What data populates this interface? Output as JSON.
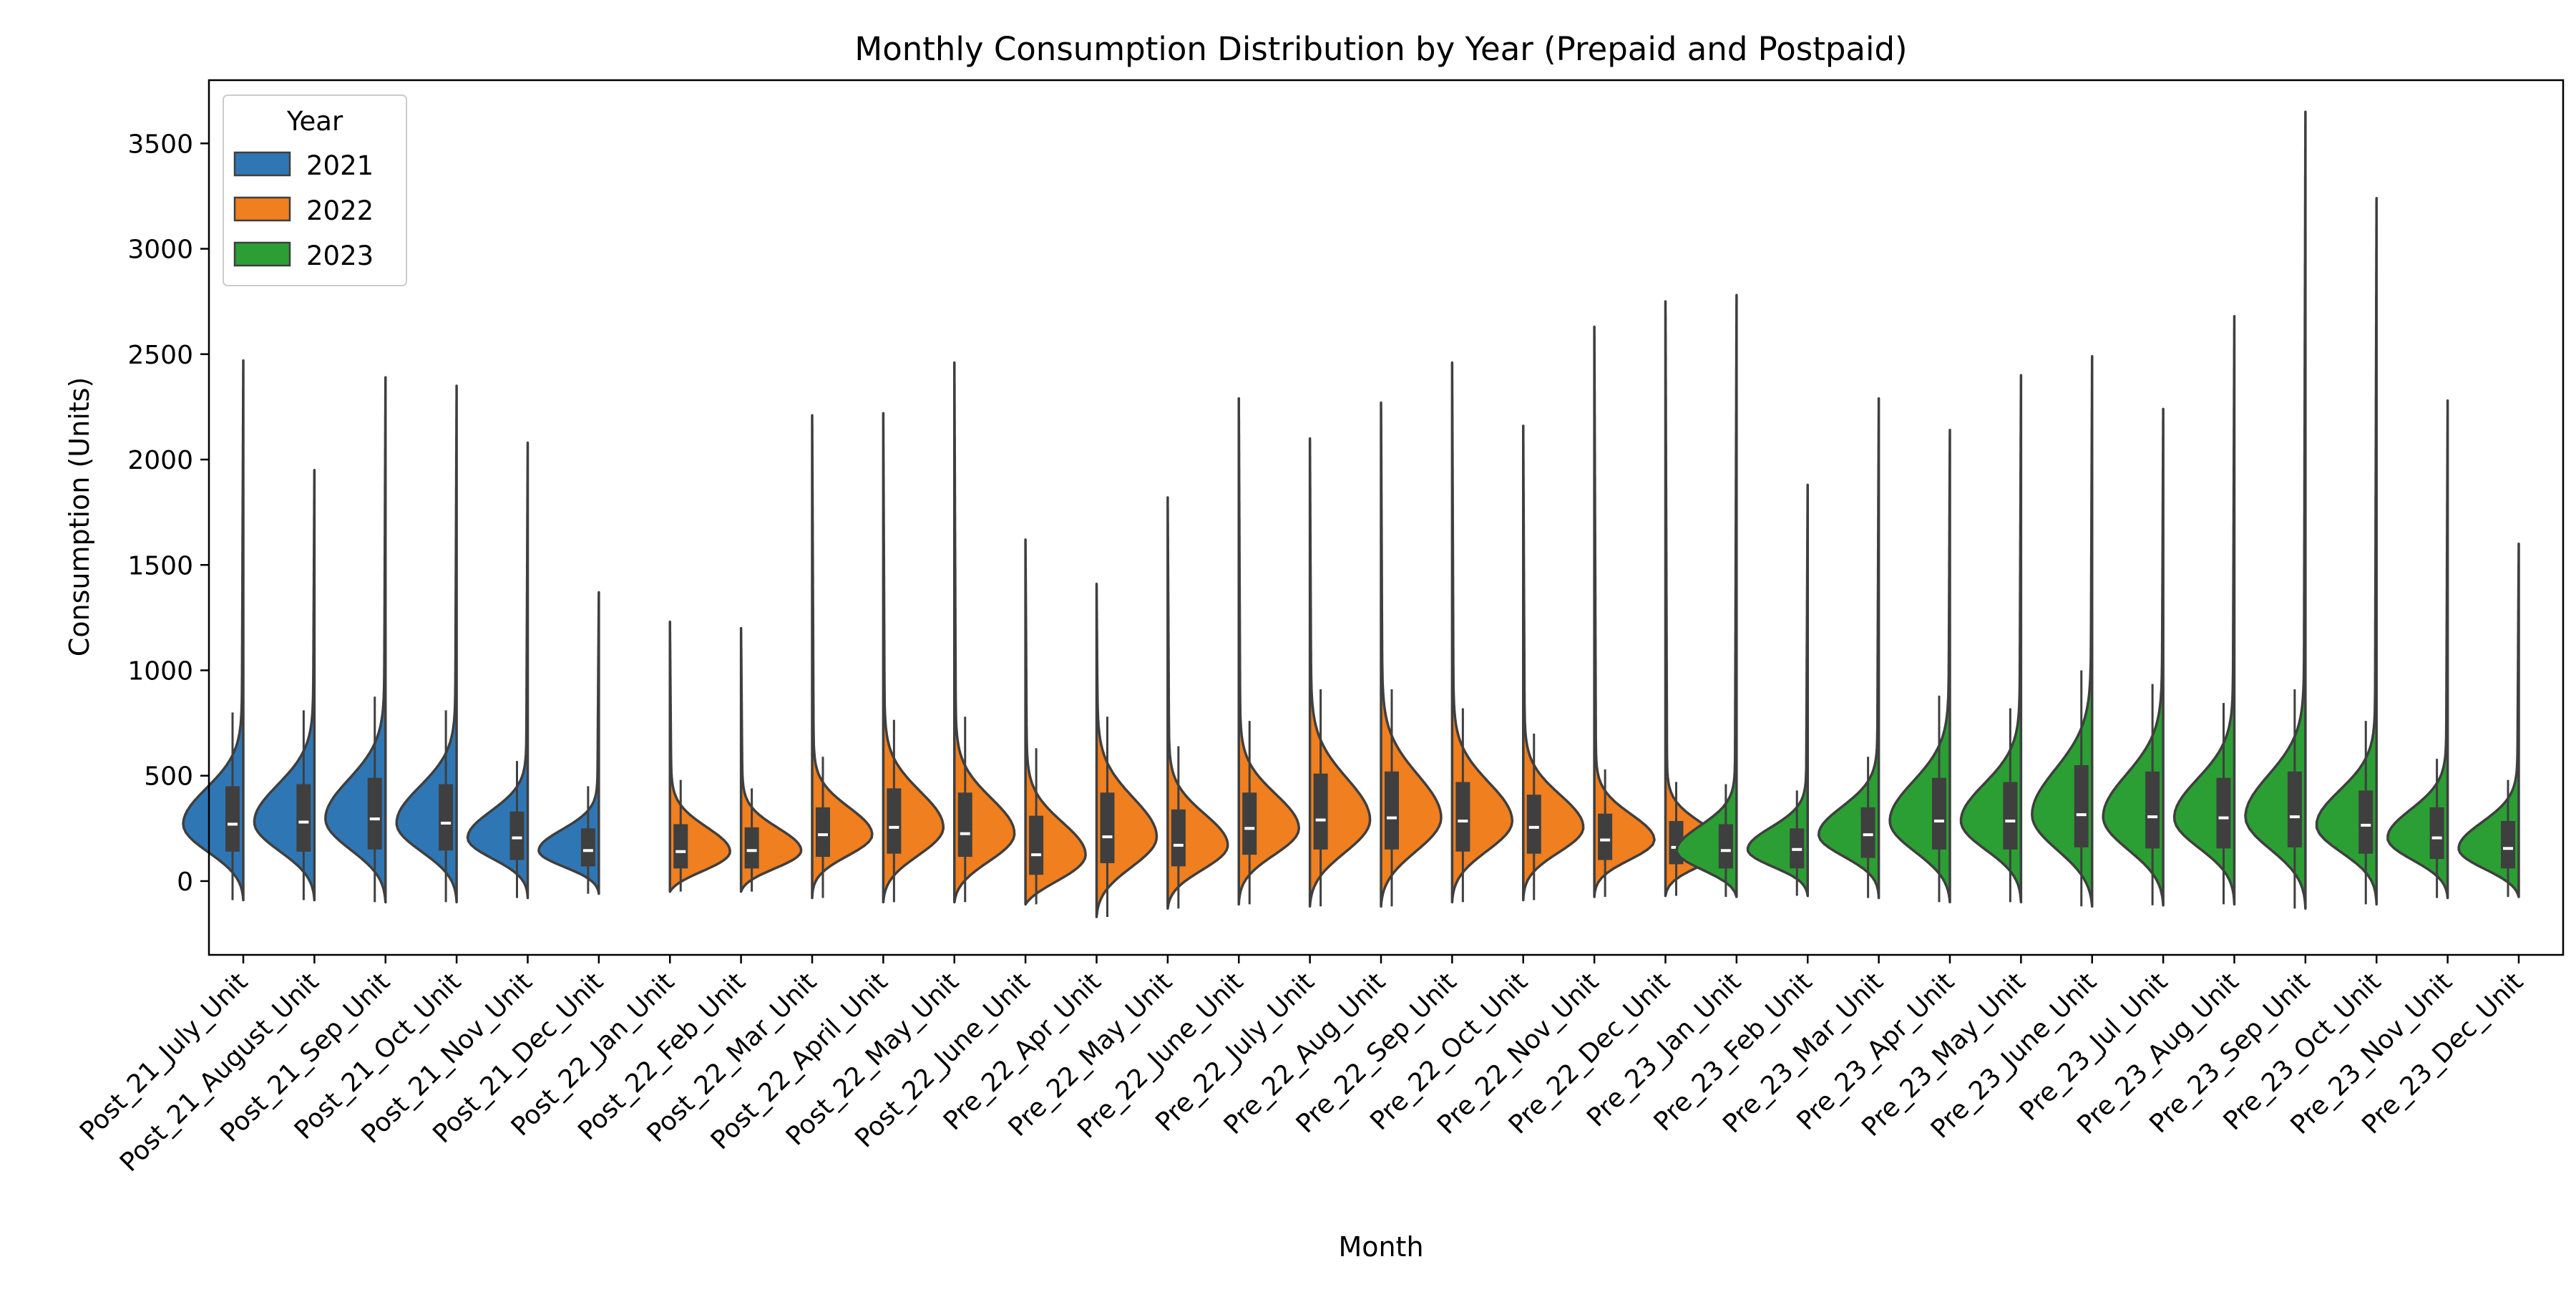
{
  "chart_data": {
    "type": "violin",
    "title": "Monthly Consumption Distribution by Year (Prepaid and Postpaid)",
    "xlabel": "Month",
    "ylabel": "Consumption (Units)",
    "ylim": [
      -350,
      3800
    ],
    "yticks": [
      0,
      500,
      1000,
      1500,
      2000,
      2500,
      3000,
      3500
    ],
    "grid": false,
    "legend": {
      "title": "Year",
      "placement": "top-left",
      "entries": [
        {
          "label": "2021",
          "color": "#2f77b4"
        },
        {
          "label": "2022",
          "color": "#ef7f1f"
        },
        {
          "label": "2023",
          "color": "#2b9f33"
        }
      ]
    },
    "categories": [
      "Post_21_July_Unit",
      "Post_21_August_Unit",
      "Post_21_Sep_Unit",
      "Post_21_Oct_Unit",
      "Post_21_Nov_Unit",
      "Post_21_Dec_Unit",
      "Post_22_Jan_Unit",
      "Post_22_Feb_Unit",
      "Post_22_Mar_Unit",
      "Post_22_April_Unit",
      "Post_22_May_Unit",
      "Post_22_June_Unit",
      "Pre_22_Apr_Unit",
      "Pre_22_May_Unit",
      "Pre_22_June_Unit",
      "Pre_22_July_Unit",
      "Pre_22_Aug_Unit",
      "Pre_22_Sep_Unit",
      "Pre_22_Oct_Unit",
      "Pre_22_Nov_Unit",
      "Pre_22_Dec_Unit",
      "Pre_23_Jan_Unit",
      "Pre_23_Feb_Unit",
      "Pre_23_Mar_Unit",
      "Pre_23_Apr_Unit",
      "Pre_23_May_Unit",
      "Pre_23_June_Unit",
      "Pre_23_Jul_Unit",
      "Pre_23_Aug_Unit",
      "Pre_23_Sep_Unit",
      "Pre_23_Oct_Unit",
      "Pre_23_Nov_Unit",
      "Pre_23_Dec_Unit"
    ],
    "violins": [
      {
        "year": "2021",
        "side": "left",
        "min": -90,
        "q1": 140,
        "median": 270,
        "q3": 450,
        "whisker_high": 800,
        "max": 2470,
        "mode": 270
      },
      {
        "year": "2021",
        "side": "left",
        "min": -90,
        "q1": 140,
        "median": 280,
        "q3": 460,
        "whisker_high": 810,
        "max": 1950,
        "mode": 280
      },
      {
        "year": "2021",
        "side": "left",
        "min": -100,
        "q1": 150,
        "median": 295,
        "q3": 490,
        "whisker_high": 875,
        "max": 2390,
        "mode": 295
      },
      {
        "year": "2021",
        "side": "left",
        "min": -100,
        "q1": 145,
        "median": 275,
        "q3": 460,
        "whisker_high": 810,
        "max": 2350,
        "mode": 275
      },
      {
        "year": "2021",
        "side": "left",
        "min": -80,
        "q1": 100,
        "median": 205,
        "q3": 330,
        "whisker_high": 570,
        "max": 2080,
        "mode": 205
      },
      {
        "year": "2021",
        "side": "left",
        "min": -60,
        "q1": 70,
        "median": 145,
        "q3": 250,
        "whisker_high": 450,
        "max": 1370,
        "mode": 145
      },
      {
        "year": "2022",
        "side": "right",
        "min": -50,
        "q1": 60,
        "median": 140,
        "q3": 270,
        "whisker_high": 480,
        "max": 1230,
        "mode": 140
      },
      {
        "year": "2022",
        "side": "right",
        "min": -50,
        "q1": 60,
        "median": 145,
        "q3": 255,
        "whisker_high": 440,
        "max": 1200,
        "mode": 145
      },
      {
        "year": "2022",
        "side": "right",
        "min": -80,
        "q1": 115,
        "median": 220,
        "q3": 350,
        "whisker_high": 590,
        "max": 2210,
        "mode": 220
      },
      {
        "year": "2022",
        "side": "right",
        "min": -100,
        "q1": 130,
        "median": 255,
        "q3": 440,
        "whisker_high": 765,
        "max": 2220,
        "mode": 255
      },
      {
        "year": "2022",
        "side": "right",
        "min": -100,
        "q1": 115,
        "median": 225,
        "q3": 420,
        "whisker_high": 780,
        "max": 2460,
        "mode": 225
      },
      {
        "year": "2022",
        "side": "right",
        "min": -110,
        "q1": 30,
        "median": 125,
        "q3": 310,
        "whisker_high": 630,
        "max": 1620,
        "mode": 125
      },
      {
        "year": "2022",
        "side": "right",
        "min": -170,
        "q1": 85,
        "median": 210,
        "q3": 420,
        "whisker_high": 780,
        "max": 1410,
        "mode": 210
      },
      {
        "year": "2022",
        "side": "right",
        "min": -130,
        "q1": 70,
        "median": 170,
        "q3": 340,
        "whisker_high": 640,
        "max": 1820,
        "mode": 170
      },
      {
        "year": "2022",
        "side": "right",
        "min": -110,
        "q1": 125,
        "median": 250,
        "q3": 420,
        "whisker_high": 760,
        "max": 2290,
        "mode": 250
      },
      {
        "year": "2022",
        "side": "right",
        "min": -120,
        "q1": 150,
        "median": 290,
        "q3": 510,
        "whisker_high": 910,
        "max": 2100,
        "mode": 290
      },
      {
        "year": "2022",
        "side": "right",
        "min": -120,
        "q1": 150,
        "median": 300,
        "q3": 520,
        "whisker_high": 910,
        "max": 2270,
        "mode": 300
      },
      {
        "year": "2022",
        "side": "right",
        "min": -100,
        "q1": 140,
        "median": 285,
        "q3": 470,
        "whisker_high": 820,
        "max": 2460,
        "mode": 285
      },
      {
        "year": "2022",
        "side": "right",
        "min": -90,
        "q1": 130,
        "median": 255,
        "q3": 410,
        "whisker_high": 700,
        "max": 2160,
        "mode": 255
      },
      {
        "year": "2022",
        "side": "right",
        "min": -75,
        "q1": 100,
        "median": 195,
        "q3": 320,
        "whisker_high": 530,
        "max": 2630,
        "mode": 195
      },
      {
        "year": "2022",
        "side": "right",
        "min": -70,
        "q1": 80,
        "median": 160,
        "q3": 285,
        "whisker_high": 470,
        "max": 2750,
        "mode": 160
      },
      {
        "year": "2023",
        "side": "left",
        "min": -75,
        "q1": 60,
        "median": 145,
        "q3": 270,
        "whisker_high": 460,
        "max": 2780,
        "mode": 145
      },
      {
        "year": "2023",
        "side": "left",
        "min": -70,
        "q1": 60,
        "median": 150,
        "q3": 250,
        "whisker_high": 430,
        "max": 1880,
        "mode": 150
      },
      {
        "year": "2023",
        "side": "left",
        "min": -80,
        "q1": 110,
        "median": 220,
        "q3": 350,
        "whisker_high": 590,
        "max": 2290,
        "mode": 220
      },
      {
        "year": "2023",
        "side": "left",
        "min": -100,
        "q1": 150,
        "median": 285,
        "q3": 490,
        "whisker_high": 880,
        "max": 2140,
        "mode": 285
      },
      {
        "year": "2023",
        "side": "left",
        "min": -100,
        "q1": 150,
        "median": 285,
        "q3": 470,
        "whisker_high": 820,
        "max": 2400,
        "mode": 285
      },
      {
        "year": "2023",
        "side": "left",
        "min": -120,
        "q1": 160,
        "median": 315,
        "q3": 550,
        "whisker_high": 1000,
        "max": 2490,
        "mode": 315
      },
      {
        "year": "2023",
        "side": "left",
        "min": -115,
        "q1": 155,
        "median": 305,
        "q3": 520,
        "whisker_high": 935,
        "max": 2240,
        "mode": 305
      },
      {
        "year": "2023",
        "side": "left",
        "min": -110,
        "q1": 155,
        "median": 300,
        "q3": 490,
        "whisker_high": 845,
        "max": 2680,
        "mode": 300
      },
      {
        "year": "2023",
        "side": "left",
        "min": -130,
        "q1": 160,
        "median": 305,
        "q3": 520,
        "whisker_high": 910,
        "max": 3650,
        "mode": 305
      },
      {
        "year": "2023",
        "side": "left",
        "min": -110,
        "q1": 130,
        "median": 265,
        "q3": 430,
        "whisker_high": 760,
        "max": 3240,
        "mode": 265
      },
      {
        "year": "2023",
        "side": "left",
        "min": -80,
        "q1": 105,
        "median": 205,
        "q3": 350,
        "whisker_high": 580,
        "max": 2280,
        "mode": 205
      },
      {
        "year": "2023",
        "side": "left",
        "min": -75,
        "q1": 60,
        "median": 155,
        "q3": 285,
        "whisker_high": 480,
        "max": 1600,
        "mode": 155
      }
    ]
  }
}
